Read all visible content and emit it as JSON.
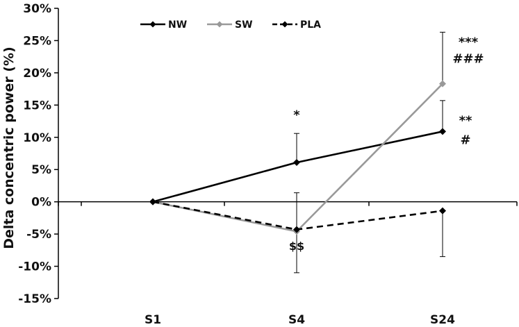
{
  "chart_data": {
    "type": "line",
    "ylabel": "Delta concentric power (%)",
    "xlabel": "",
    "categories": [
      "S1",
      "S4",
      "S24"
    ],
    "ylim": [
      -15,
      30
    ],
    "yticks": [
      "30%",
      "25%",
      "20%",
      "15%",
      "10%",
      "5%",
      "0%",
      "-5%",
      "-10%",
      "-15%"
    ],
    "yticks_values": [
      30,
      25,
      20,
      15,
      10,
      5,
      0,
      -5,
      -10,
      -15
    ],
    "legend_position": "top-left",
    "series": [
      {
        "name": "NW",
        "color": "#000000",
        "style": "solid",
        "values": [
          0,
          6.1,
          10.9
        ],
        "error_upper": [
          0,
          4.5,
          4.8
        ],
        "error_lower": [
          0,
          0,
          0
        ]
      },
      {
        "name": "SW",
        "color": "#999999",
        "style": "solid",
        "values": [
          0,
          -4.6,
          18.3
        ],
        "error_upper": [
          0,
          0,
          8.0
        ],
        "error_lower": [
          0,
          6.4,
          0
        ]
      },
      {
        "name": "PLA",
        "color": "#000000",
        "style": "dashed",
        "values": [
          0,
          -4.3,
          -1.4
        ],
        "error_upper": [
          0,
          5.7,
          0
        ],
        "error_lower": [
          0,
          0,
          7.1
        ]
      }
    ],
    "annotations": [
      {
        "text": "*",
        "x": "S4",
        "y": 13.5
      },
      {
        "text": "$$",
        "x": "S4",
        "y": -6.8
      },
      {
        "text": "***",
        "x": "S24",
        "y": 24.8
      },
      {
        "text": "###",
        "x": "S24",
        "y": 22.2
      },
      {
        "text": "**",
        "x": "S24",
        "y": 12.6
      },
      {
        "text": "#",
        "x": "S24",
        "y": 9.6
      }
    ]
  }
}
